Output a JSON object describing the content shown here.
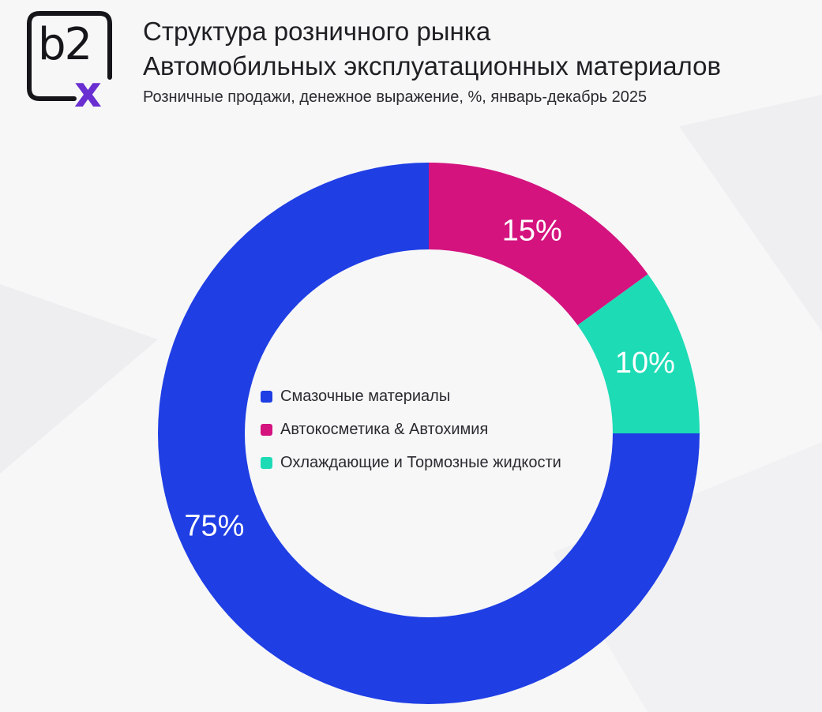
{
  "brand": {
    "logo_text": "b2",
    "logo_mark": "x"
  },
  "header": {
    "title_line1": "Структура розничного рынка",
    "title_line2": "Автомобильных эксплуатационных материалов",
    "subtitle": "Розничные продажи, денежное выражение, %, январь-декабрь 2025"
  },
  "chart_data": {
    "type": "pie",
    "donut": true,
    "start": "12 o'clock",
    "direction": "clockwise",
    "legend_position": "center",
    "slices": [
      {
        "label": "Автокосметика & Автохимия",
        "value": 15,
        "value_label": "15%",
        "color": "#d4137f"
      },
      {
        "label": "Охлаждающие и Тормозные жидкости",
        "value": 10,
        "value_label": "10%",
        "color": "#1ddbb5"
      },
      {
        "label": "Смазочные материалы",
        "value": 75,
        "value_label": "75%",
        "color": "#1f3ee4"
      }
    ],
    "legend_order": [
      2,
      0,
      1
    ]
  }
}
